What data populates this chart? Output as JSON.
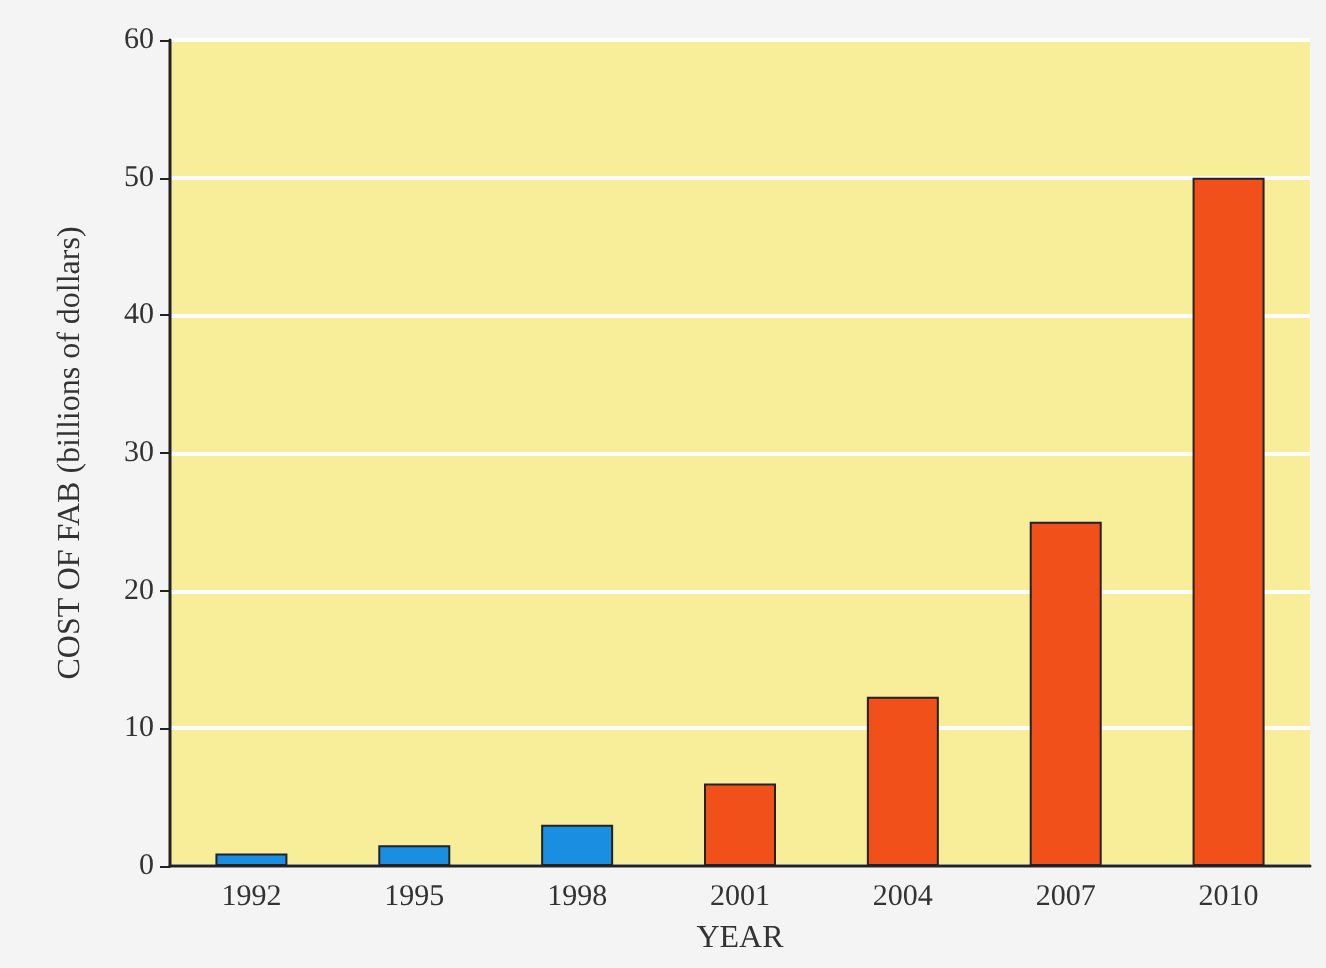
{
  "chart_data": {
    "type": "bar",
    "xlabel": "YEAR",
    "ylabel": "COST OF FAB (billions of dollars)",
    "categories": [
      "1992",
      "1995",
      "1998",
      "2001",
      "2004",
      "2007",
      "2010"
    ],
    "values": [
      0.9,
      1.5,
      3,
      6,
      12.3,
      25,
      50
    ],
    "colors": [
      "#1a8ee0",
      "#1a8ee0",
      "#1a8ee0",
      "#f2501a",
      "#f2501a",
      "#f2501a",
      "#f2501a"
    ],
    "ylim": [
      0,
      60
    ],
    "yticks": [
      0,
      10,
      20,
      30,
      40,
      50,
      60
    ],
    "grid": "y"
  }
}
